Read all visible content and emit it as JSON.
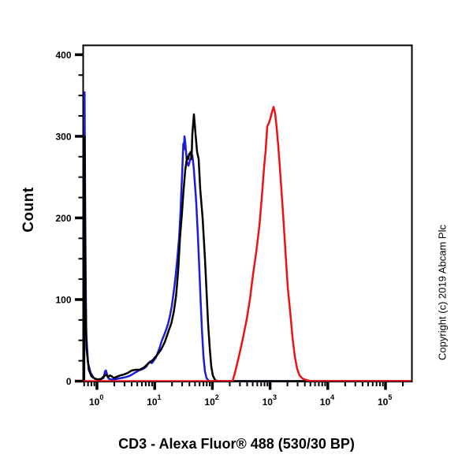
{
  "figure": {
    "xlabel": "CD3 - Alexa Fluor® 488 (530/30 BP)",
    "ylabel": "Count",
    "copyright": "Copyright (c) 2019 Abcam Plc",
    "background_color": "#ffffff",
    "axis_color": "#000000"
  },
  "chart_data": {
    "type": "line",
    "subtype": "flow-cytometry-histogram",
    "title": "",
    "xlabel": "CD3 - Alexa Fluor® 488 (530/30 BP)",
    "ylabel": "Count",
    "x_scale": "log10",
    "xlim": [
      0.57,
      270000
    ],
    "ylim": [
      0,
      412
    ],
    "y_ticks": [
      0,
      100,
      200,
      300,
      400
    ],
    "y_minor_step": 25,
    "x_tick_label_base": "10",
    "x_tick_exponents": [
      0,
      1,
      2,
      3,
      4,
      5
    ],
    "x_minor_mantissas": [
      2,
      3,
      4,
      5,
      6,
      7,
      8,
      9
    ],
    "grid": false,
    "legend": "none",
    "series": [
      {
        "name": "blue-curve-unlabelled-control",
        "color": "#1d1dd8",
        "points": [
          [
            0.6,
            0
          ],
          [
            0.61,
            354
          ],
          [
            0.625,
            200
          ],
          [
            0.65,
            60
          ],
          [
            0.7,
            22
          ],
          [
            0.78,
            10
          ],
          [
            0.88,
            4
          ],
          [
            1.0,
            2
          ],
          [
            1.15,
            2
          ],
          [
            1.3,
            4
          ],
          [
            1.38,
            12
          ],
          [
            1.43,
            13
          ],
          [
            1.5,
            8
          ],
          [
            1.6,
            3
          ],
          [
            1.8,
            2
          ],
          [
            2.0,
            2
          ],
          [
            2.3,
            3
          ],
          [
            2.7,
            4
          ],
          [
            3.2,
            5
          ],
          [
            3.8,
            7
          ],
          [
            4.5,
            10
          ],
          [
            5.3,
            13
          ],
          [
            6.3,
            15
          ],
          [
            7.2,
            18
          ],
          [
            7.8,
            22
          ],
          [
            8.3,
            24
          ],
          [
            8.9,
            22
          ],
          [
            9.6,
            25
          ],
          [
            10.5,
            29
          ],
          [
            11.3,
            35
          ],
          [
            12.2,
            41
          ],
          [
            13.2,
            49
          ],
          [
            14.5,
            56
          ],
          [
            15.8,
            63
          ],
          [
            17.0,
            70
          ],
          [
            18.3,
            79
          ],
          [
            19.8,
            92
          ],
          [
            21.3,
            108
          ],
          [
            23,
            128
          ],
          [
            24.8,
            152
          ],
          [
            26.6,
            177
          ],
          [
            28,
            205
          ],
          [
            29,
            232
          ],
          [
            30,
            255
          ],
          [
            30.8,
            278
          ],
          [
            31.4,
            291
          ],
          [
            32,
            284
          ],
          [
            32.8,
            300
          ],
          [
            33.8,
            293
          ],
          [
            35,
            281
          ],
          [
            36.3,
            268
          ],
          [
            38.5,
            264
          ],
          [
            41.5,
            272
          ],
          [
            44.8,
            277
          ],
          [
            47.5,
            262
          ],
          [
            50,
            240
          ],
          [
            52.5,
            219
          ],
          [
            55.5,
            185
          ],
          [
            58.5,
            148
          ],
          [
            62,
            105
          ],
          [
            66,
            62
          ],
          [
            70,
            30
          ],
          [
            74.5,
            12
          ],
          [
            79,
            4
          ],
          [
            85,
            1
          ],
          [
            92,
            0
          ],
          [
            270000,
            0
          ]
        ]
      },
      {
        "name": "black-curve-secondary-only-control",
        "color": "#000000",
        "points": [
          [
            0.6,
            0
          ],
          [
            0.612,
            300
          ],
          [
            0.63,
            120
          ],
          [
            0.66,
            40
          ],
          [
            0.72,
            14
          ],
          [
            0.8,
            6
          ],
          [
            0.92,
            3
          ],
          [
            1.05,
            2
          ],
          [
            1.2,
            3
          ],
          [
            1.32,
            6
          ],
          [
            1.45,
            8
          ],
          [
            1.55,
            5
          ],
          [
            1.68,
            7
          ],
          [
            1.8,
            6
          ],
          [
            1.95,
            4
          ],
          [
            2.15,
            5
          ],
          [
            2.5,
            7
          ],
          [
            2.9,
            8
          ],
          [
            3.4,
            10
          ],
          [
            4.0,
            13
          ],
          [
            4.7,
            14
          ],
          [
            5.5,
            14
          ],
          [
            6.6,
            17
          ],
          [
            7.8,
            22
          ],
          [
            9.3,
            26
          ],
          [
            11,
            32
          ],
          [
            13,
            39
          ],
          [
            15,
            48
          ],
          [
            17.5,
            62
          ],
          [
            19.5,
            71
          ],
          [
            21.5,
            85
          ],
          [
            23.5,
            105
          ],
          [
            25.5,
            135
          ],
          [
            27.5,
            177
          ],
          [
            29.5,
            203
          ],
          [
            31.5,
            232
          ],
          [
            33.9,
            259
          ],
          [
            36.5,
            275
          ],
          [
            38,
            272
          ],
          [
            39.5,
            278
          ],
          [
            42.2,
            281
          ],
          [
            43.6,
            272
          ],
          [
            45,
            303
          ],
          [
            47.9,
            327
          ],
          [
            51,
            303
          ],
          [
            54.3,
            281
          ],
          [
            57.8,
            272
          ],
          [
            61.6,
            235
          ],
          [
            67.7,
            200
          ],
          [
            74.4,
            150
          ],
          [
            79.3,
            110
          ],
          [
            84.4,
            70
          ],
          [
            90,
            40
          ],
          [
            95.7,
            18
          ],
          [
            102,
            7
          ],
          [
            112,
            1
          ],
          [
            125,
            0
          ],
          [
            270000,
            0
          ]
        ]
      },
      {
        "name": "red-curve-cd3-stained",
        "color": "#ee1111",
        "points": [
          [
            0.57,
            0
          ],
          [
            150,
            0
          ],
          [
            224,
            0
          ],
          [
            246,
            10
          ],
          [
            288,
            30
          ],
          [
            337,
            52
          ],
          [
            394,
            76
          ],
          [
            447,
            100
          ],
          [
            507,
            131
          ],
          [
            575,
            158
          ],
          [
            652,
            190
          ],
          [
            716,
            224
          ],
          [
            787,
            262
          ],
          [
            838,
            283
          ],
          [
            893,
            312
          ],
          [
            951,
            316
          ],
          [
            1012,
            322
          ],
          [
            1078,
            330
          ],
          [
            1148,
            336
          ],
          [
            1222,
            328
          ],
          [
            1302,
            310
          ],
          [
            1387,
            288
          ],
          [
            1476,
            262
          ],
          [
            1573,
            234
          ],
          [
            1675,
            206
          ],
          [
            1783,
            176
          ],
          [
            1900,
            145
          ],
          [
            2023,
            115
          ],
          [
            2223,
            86
          ],
          [
            2443,
            54
          ],
          [
            2685,
            30
          ],
          [
            2951,
            15
          ],
          [
            3243,
            7
          ],
          [
            3681,
            3
          ],
          [
            4446,
            1
          ],
          [
            5200,
            0
          ],
          [
            270000,
            0
          ]
        ]
      }
    ]
  }
}
